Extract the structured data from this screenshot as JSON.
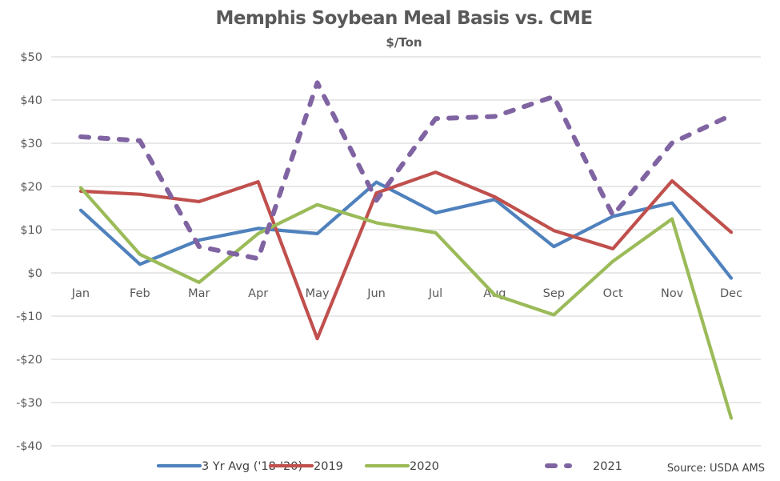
{
  "chart_data": {
    "type": "line",
    "title": "Memphis Soybean Meal Basis vs. CME",
    "subtitle": "$/Ton",
    "xlabel": "",
    "ylabel": "",
    "categories": [
      "Jan",
      "Feb",
      "Mar",
      "Apr",
      "May",
      "Jun",
      "Jul",
      "Aug",
      "Sep",
      "Oct",
      "Nov",
      "Dec"
    ],
    "ylim": [
      -40,
      50
    ],
    "yticks": [
      50,
      40,
      30,
      20,
      10,
      0,
      -10,
      -20,
      -30,
      -40
    ],
    "ytick_labels": [
      "$50",
      "$40",
      "$30",
      "$20",
      "$10",
      "$0",
      "-$10",
      "-$20",
      "-$30",
      "-$40"
    ],
    "grid": true,
    "legend_position": "bottom",
    "series": [
      {
        "name": "3 Yr Avg ('18-'20)",
        "color": "#4F81BD",
        "dash": false,
        "values": [
          14.5,
          2.0,
          7.6,
          10.3,
          9.1,
          21.0,
          13.9,
          17.0,
          6.1,
          13.1,
          16.2,
          -1.2
        ]
      },
      {
        "name": "2019",
        "color": "#C0504D",
        "dash": false,
        "values": [
          18.9,
          18.2,
          16.5,
          21.1,
          -15.2,
          18.5,
          23.3,
          17.6,
          9.8,
          5.6,
          21.3,
          9.4
        ]
      },
      {
        "name": "2020",
        "color": "#9BBB59",
        "dash": false,
        "values": [
          19.7,
          4.3,
          -2.2,
          9.1,
          15.8,
          11.6,
          9.3,
          -5.1,
          -9.7,
          2.7,
          12.5,
          -33.6
        ]
      },
      {
        "name": "2021",
        "color": "#8064A2",
        "dash": true,
        "values": [
          31.5,
          30.6,
          6.1,
          3.3,
          44.0,
          16.8,
          35.7,
          36.2,
          40.8,
          13.3,
          30.1,
          36.5
        ]
      }
    ],
    "source": "Source: USDA AMS"
  }
}
